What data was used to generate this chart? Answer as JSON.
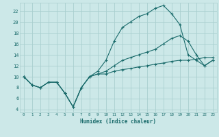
{
  "xlabel": "Humidex (Indice chaleur)",
  "bg_color": "#cce8e8",
  "grid_color": "#aacfcf",
  "line_color": "#1a6b6b",
  "line_upper_x": [
    0,
    1,
    2,
    3,
    4,
    5,
    6,
    7,
    8,
    9,
    10,
    11,
    12,
    13,
    14,
    15,
    16,
    17,
    18,
    19,
    20,
    21,
    22,
    23
  ],
  "line_upper_y": [
    10,
    8.5,
    8,
    9,
    9,
    7,
    4.5,
    8,
    10,
    11,
    13,
    16.5,
    19,
    20,
    21,
    21.5,
    22.5,
    23,
    21.5,
    19.5,
    14,
    13,
    12,
    13
  ],
  "line_mid_x": [
    0,
    1,
    2,
    3,
    4,
    5,
    6,
    7,
    8,
    9,
    10,
    11,
    12,
    13,
    14,
    15,
    16,
    17,
    18,
    19,
    20,
    21,
    22,
    23
  ],
  "line_mid_y": [
    10,
    8.5,
    8,
    9,
    9,
    7,
    4.5,
    8,
    10,
    10.5,
    11,
    12,
    13,
    13.5,
    14,
    14.5,
    15,
    16,
    17,
    17.5,
    16.5,
    14,
    12,
    13
  ],
  "line_low_x": [
    0,
    1,
    2,
    3,
    4,
    5,
    6,
    7,
    8,
    9,
    10,
    11,
    12,
    13,
    14,
    15,
    16,
    17,
    18,
    19,
    20,
    21,
    22,
    23
  ],
  "line_low_y": [
    10,
    8.5,
    8,
    9,
    9,
    7,
    4.5,
    8,
    10,
    10.5,
    10.5,
    11,
    11.3,
    11.5,
    11.8,
    12,
    12.3,
    12.5,
    12.8,
    13,
    13,
    13.2,
    13.5,
    13.5
  ],
  "xlim": [
    -0.5,
    23.5
  ],
  "ylim": [
    3.5,
    23.5
  ],
  "yticks": [
    4,
    6,
    8,
    10,
    12,
    14,
    16,
    18,
    20,
    22
  ],
  "xticks": [
    0,
    1,
    2,
    3,
    4,
    5,
    6,
    7,
    8,
    9,
    10,
    11,
    12,
    13,
    14,
    15,
    16,
    17,
    18,
    19,
    20,
    21,
    22,
    23
  ]
}
